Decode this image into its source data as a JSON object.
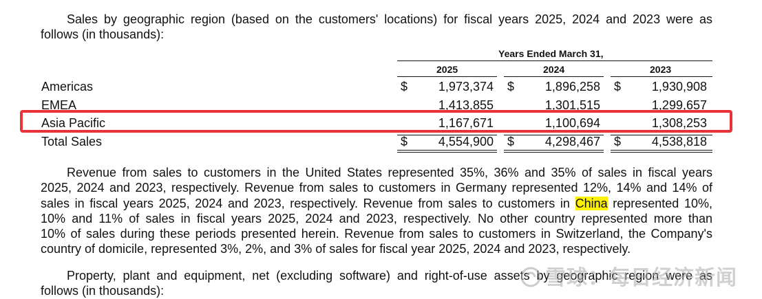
{
  "top_fragment": "\" \"",
  "intro": {
    "line1": "Sales by geographic region (based on the customers' locations) for fiscal years 2025, 2024 and 2023 were as",
    "line2": "follows (in thousands):"
  },
  "table": {
    "period_header": "Years Ended March 31,",
    "years": [
      "2025",
      "2024",
      "2023"
    ],
    "rows": [
      {
        "label": "Americas",
        "currency": "$",
        "values": [
          "1,973,374",
          "1,896,258",
          "1,930,908"
        ]
      },
      {
        "label": "EMEA",
        "values": [
          "1,413,855",
          "1,301,515",
          "1,299,657"
        ]
      },
      {
        "label": "Asia Pacific",
        "values": [
          "1,167,671",
          "1,100,694",
          "1,308,253"
        ]
      },
      {
        "label": "Total Sales",
        "currency": "$",
        "values": [
          "4,554,900",
          "4,298,467",
          "4,538,818"
        ]
      }
    ]
  },
  "revenue_paragraph": {
    "line1": "Revenue from sales to customers in the United States represented 35%, 36% and 35% of sales in fiscal years",
    "line2": "2025, 2024 and 2023, respectively. Revenue from sales to customers in Germany represented 12%, 14% and 14% of",
    "line3_pre": "sales in fiscal years 2025, 2024 and 2023, respectively. Revenue from sales to customers in",
    "line3_hl": "China",
    "line3_post": "represented 10%,",
    "line4": "10% and 11% of sales in fiscal years 2025, 2024 and 2023, respectively. No other country represented more than",
    "line5": "10% of sales during these periods presented herein. Revenue from sales to customers in Switzerland, the Company's",
    "line6": "country of domicile, represented 3%, 2%, and 3% of sales for fiscal year 2025, 2024 and 2023, respectively."
  },
  "property_paragraph": {
    "line1": "Property, plant and equipment, net (excluding software) and right-of-use assets by geographic region were as",
    "line2": "follows (in thousands):"
  },
  "watermark": {
    "text": "雪球：每日经济新闻"
  },
  "colors": {
    "highlight_box": "#e8333a",
    "text_highlight": "#fff200"
  }
}
